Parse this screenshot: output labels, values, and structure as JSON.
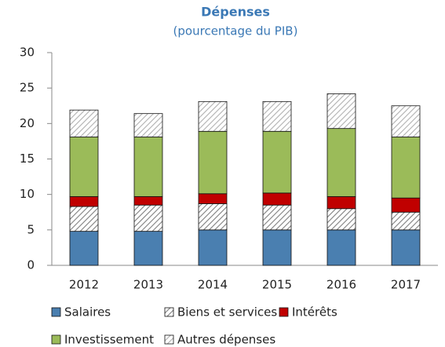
{
  "chart_data": {
    "type": "stacked_bar",
    "title": "Dépenses",
    "subtitle": "(pourcentage du PIB)",
    "categories": [
      "2012",
      "2013",
      "2014",
      "2015",
      "2016",
      "2017"
    ],
    "series": [
      {
        "name": "Salaires",
        "color": "#4a7fb0",
        "values": [
          4.8,
          4.8,
          5.0,
          5.0,
          5.0,
          5.0
        ]
      },
      {
        "name": "Biens et services",
        "color": "#7f7f7f",
        "pattern": "hatch",
        "values": [
          3.5,
          3.7,
          3.7,
          3.5,
          3.0,
          2.5
        ]
      },
      {
        "name": "Intérêts",
        "color": "#c00000",
        "values": [
          1.4,
          1.2,
          1.4,
          1.7,
          1.7,
          2.0
        ]
      },
      {
        "name": "Investissement",
        "color": "#9bbb59",
        "values": [
          8.4,
          8.4,
          8.8,
          8.7,
          9.6,
          8.6
        ]
      },
      {
        "name": "Autres dépenses",
        "color": "#b0b0b0",
        "pattern": "hatch",
        "values": [
          3.8,
          3.3,
          4.2,
          4.2,
          4.9,
          4.4
        ]
      }
    ],
    "ylim": [
      0,
      30
    ],
    "yticks": [
      0,
      5,
      10,
      15,
      20,
      25,
      30
    ]
  }
}
